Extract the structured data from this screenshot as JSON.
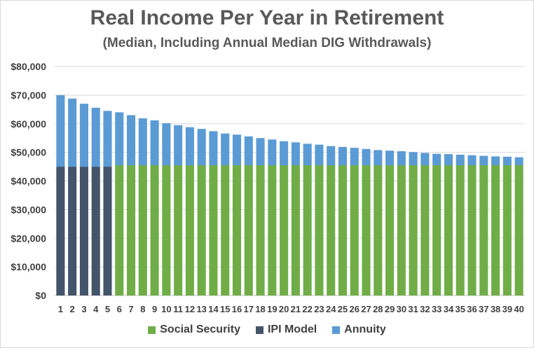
{
  "chart_data": {
    "type": "bar",
    "stacked": true,
    "title": "Real Income Per Year in Retirement",
    "subtitle": "(Median, Including Annual Median DIG Withdrawals)",
    "xlabel": "",
    "ylabel": "",
    "ylim": [
      0,
      80000
    ],
    "y_ticks": [
      0,
      10000,
      20000,
      30000,
      40000,
      50000,
      60000,
      70000,
      80000
    ],
    "y_tick_labels": [
      "$0",
      "$10,000",
      "$20,000",
      "$30,000",
      "$40,000",
      "$50,000",
      "$60,000",
      "$70,000",
      "$80,000"
    ],
    "grid": true,
    "legend_position": "bottom",
    "categories": [
      "1",
      "2",
      "3",
      "4",
      "5",
      "6",
      "7",
      "8",
      "9",
      "10",
      "11",
      "12",
      "13",
      "14",
      "15",
      "16",
      "17",
      "18",
      "19",
      "20",
      "21",
      "22",
      "23",
      "24",
      "25",
      "26",
      "27",
      "28",
      "29",
      "30",
      "31",
      "32",
      "33",
      "34",
      "35",
      "36",
      "37",
      "38",
      "39",
      "40"
    ],
    "series": [
      {
        "name": "Social Security",
        "color": "#70ad47",
        "values": [
          0,
          0,
          0,
          0,
          0,
          45500,
          45500,
          45500,
          45500,
          45500,
          45500,
          45500,
          45500,
          45500,
          45500,
          45500,
          45500,
          45500,
          45500,
          45500,
          45500,
          45500,
          45500,
          45500,
          45500,
          45500,
          45500,
          45500,
          45500,
          45500,
          45500,
          45500,
          45500,
          45500,
          45500,
          45500,
          45500,
          45500,
          45500,
          45500
        ]
      },
      {
        "name": "IPI Model",
        "color": "#44546a",
        "values": [
          45000,
          45000,
          45000,
          45000,
          45000,
          0,
          0,
          0,
          0,
          0,
          0,
          0,
          0,
          0,
          0,
          0,
          0,
          0,
          0,
          0,
          0,
          0,
          0,
          0,
          0,
          0,
          0,
          0,
          0,
          0,
          0,
          0,
          0,
          0,
          0,
          0,
          0,
          0,
          0,
          0
        ]
      },
      {
        "name": "Annuity",
        "color": "#5b9bd5",
        "values": [
          25000,
          23800,
          22000,
          20600,
          19500,
          18500,
          17500,
          16400,
          15700,
          14700,
          14000,
          13300,
          12700,
          11900,
          11100,
          10700,
          10100,
          9500,
          9000,
          8400,
          8000,
          7500,
          7200,
          6700,
          6400,
          6100,
          5700,
          5300,
          5100,
          4900,
          4600,
          4300,
          4000,
          3900,
          3700,
          3500,
          3300,
          3100,
          3000,
          2800
        ]
      }
    ]
  }
}
